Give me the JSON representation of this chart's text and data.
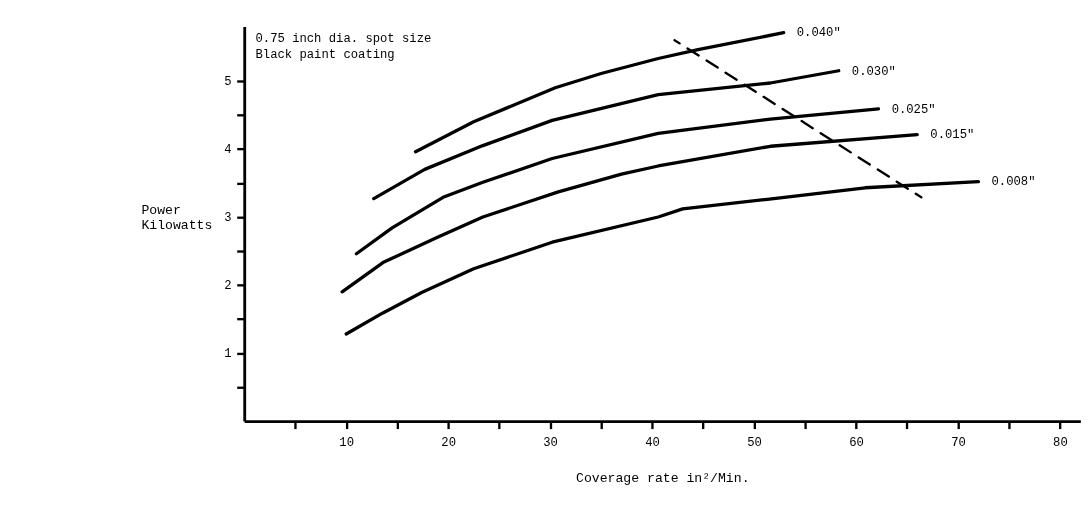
{
  "chart_data": {
    "type": "line",
    "xlabel": "Coverage rate in²/Min.",
    "ylabel": "Power\nKilowatts",
    "annotations": [
      "0.75 inch dia. spot size",
      "Black paint coating"
    ],
    "xlim": [
      0,
      82
    ],
    "ylim": [
      0,
      5.8
    ],
    "xticks": [
      {
        "value": 5,
        "label": null
      },
      10,
      {
        "value": 15,
        "label": null
      },
      20,
      {
        "value": 25,
        "label": null
      },
      30,
      {
        "value": 35,
        "label": null
      },
      40,
      {
        "value": 45,
        "label": null
      },
      50,
      {
        "value": 55,
        "label": null
      },
      60,
      {
        "value": 65,
        "label": null
      },
      70,
      {
        "value": 75,
        "label": null
      },
      80
    ],
    "yticks": [
      {
        "value": 0.5,
        "label": null
      },
      1,
      {
        "value": 1.5,
        "label": null
      },
      2,
      {
        "value": 2.5,
        "label": null
      },
      3,
      {
        "value": 3.5,
        "label": null
      },
      4,
      {
        "value": 4.5,
        "label": null
      },
      5
    ],
    "grid": false,
    "marker": "none",
    "series": [
      {
        "name": "0.008\"",
        "color": "#000000",
        "line_style": "solid",
        "x": [
          10,
          13.6,
          17.4,
          22.5,
          30.2,
          40.6,
          43,
          51.3,
          60.9,
          72
        ],
        "values": [
          1.28,
          1.59,
          1.89,
          2.24,
          2.63,
          3.0,
          3.12,
          3.26,
          3.43,
          3.52
        ]
      },
      {
        "name": "0.015\"",
        "color": "#000000",
        "line_style": "solid",
        "x": [
          9.6,
          13.6,
          18.9,
          23.4,
          30.8,
          37,
          40.6,
          51.6,
          66
        ],
        "values": [
          1.9,
          2.33,
          2.7,
          3.0,
          3.37,
          3.63,
          3.75,
          4.04,
          4.21
        ]
      },
      {
        "name": "0.025\"",
        "color": "#000000",
        "line_style": "solid",
        "x": [
          11,
          14.5,
          19.5,
          23.4,
          30.2,
          40.6,
          51.6,
          62.2
        ],
        "values": [
          2.46,
          2.84,
          3.29,
          3.51,
          3.86,
          4.23,
          4.44,
          4.59
        ]
      },
      {
        "name": "0.030\"",
        "color": "#000000",
        "line_style": "solid",
        "x": [
          12.7,
          17.7,
          23.4,
          30.2,
          40.6,
          51.6,
          58.3
        ],
        "values": [
          3.27,
          3.7,
          4.05,
          4.42,
          4.8,
          4.97,
          5.15
        ]
      },
      {
        "name": "0.040\"",
        "color": "#000000",
        "line_style": "solid",
        "x": [
          16.8,
          22.5,
          30.5,
          35,
          40.6,
          44.5,
          52.9
        ],
        "values": [
          3.96,
          4.4,
          4.9,
          5.11,
          5.33,
          5.46,
          5.71
        ]
      },
      {
        "color": "#000000",
        "line_style": "dashed",
        "x": [
          42.2,
          66.4
        ],
        "values": [
          5.6,
          3.29
        ]
      }
    ]
  }
}
